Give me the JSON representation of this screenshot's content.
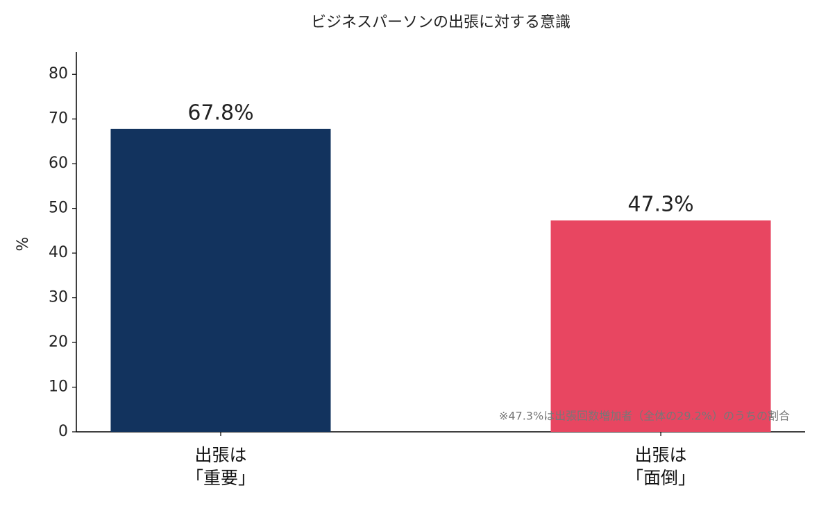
{
  "chart_data": {
    "type": "bar",
    "title": "ビジネスパーソンの出張に対する意識",
    "y_label": "%",
    "categories": [
      "出張は\n「重要」",
      "出張は\n「面倒」"
    ],
    "values": [
      67.8,
      47.3
    ],
    "value_labels": [
      "67.8%",
      "47.3%"
    ],
    "colors": [
      "#12335e",
      "#e84661"
    ],
    "ylim": [
      0,
      85
    ],
    "yticks": [
      0,
      10,
      20,
      30,
      40,
      50,
      60,
      70,
      80
    ],
    "annotation": "※47.3%は出張回数増加者（全体の29.2%）のうちの割合"
  }
}
